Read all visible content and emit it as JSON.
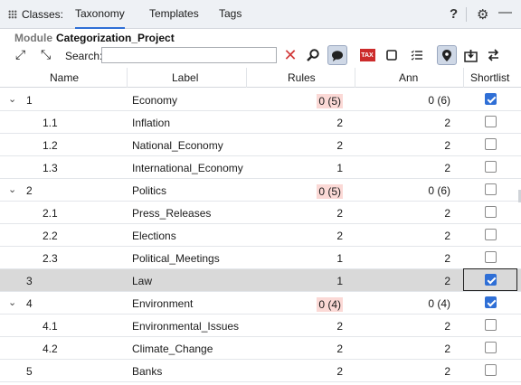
{
  "header": {
    "classes_label": "Classes:",
    "tabs": [
      {
        "label": "Taxonomy",
        "active": true
      },
      {
        "label": "Templates",
        "active": false
      },
      {
        "label": "Tags",
        "active": false
      }
    ],
    "help_icon": "?",
    "gear_icon": "⚙",
    "minimize_icon": "—"
  },
  "module": {
    "label": "Module",
    "name": "Categorization_Project"
  },
  "toolbar": {
    "search_label": "Search:",
    "search_value": "",
    "tax_label": "TAX"
  },
  "columns": {
    "name": "Name",
    "label": "Label",
    "rules": "Rules",
    "ann": "Ann",
    "shortlist": "Shortlist"
  },
  "rows": [
    {
      "name": "1",
      "label": "Economy",
      "rules": "0 (5)",
      "ann": "0 (6)",
      "expanded": true,
      "rules_highlight": true,
      "checked": true,
      "selected": false
    },
    {
      "name": "1.1",
      "label": "Inflation",
      "rules": "2",
      "ann": "2",
      "expanded": false,
      "rules_highlight": false,
      "checked": false,
      "selected": false
    },
    {
      "name": "1.2",
      "label": "National_Economy",
      "rules": "2",
      "ann": "2",
      "expanded": false,
      "rules_highlight": false,
      "checked": false,
      "selected": false
    },
    {
      "name": "1.3",
      "label": "International_Economy",
      "rules": "1",
      "ann": "2",
      "expanded": false,
      "rules_highlight": false,
      "checked": false,
      "selected": false
    },
    {
      "name": "2",
      "label": "Politics",
      "rules": "0 (5)",
      "ann": "0 (6)",
      "expanded": true,
      "rules_highlight": true,
      "checked": false,
      "selected": false
    },
    {
      "name": "2.1",
      "label": "Press_Releases",
      "rules": "2",
      "ann": "2",
      "expanded": false,
      "rules_highlight": false,
      "checked": false,
      "selected": false
    },
    {
      "name": "2.2",
      "label": "Elections",
      "rules": "2",
      "ann": "2",
      "expanded": false,
      "rules_highlight": false,
      "checked": false,
      "selected": false
    },
    {
      "name": "2.3",
      "label": "Political_Meetings",
      "rules": "1",
      "ann": "2",
      "expanded": false,
      "rules_highlight": false,
      "checked": false,
      "selected": false
    },
    {
      "name": "3",
      "label": "Law",
      "rules": "1",
      "ann": "2",
      "expanded": false,
      "rules_highlight": false,
      "checked": true,
      "selected": true
    },
    {
      "name": "4",
      "label": "Environment",
      "rules": "0 (4)",
      "ann": "0 (4)",
      "expanded": true,
      "rules_highlight": true,
      "checked": true,
      "selected": false
    },
    {
      "name": "4.1",
      "label": "Environmental_Issues",
      "rules": "2",
      "ann": "2",
      "expanded": false,
      "rules_highlight": false,
      "checked": false,
      "selected": false
    },
    {
      "name": "4.2",
      "label": "Climate_Change",
      "rules": "2",
      "ann": "2",
      "expanded": false,
      "rules_highlight": false,
      "checked": false,
      "selected": false
    },
    {
      "name": "5",
      "label": "Banks",
      "rules": "2",
      "ann": "2",
      "expanded": false,
      "rules_highlight": false,
      "checked": false,
      "selected": false
    }
  ],
  "colors": {
    "accent": "#2f6fd6",
    "rules_highlight": "#fbd9d6",
    "selected_row": "#d9d9d9"
  }
}
